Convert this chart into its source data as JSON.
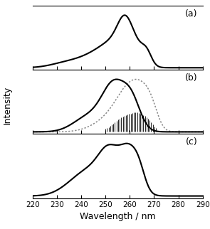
{
  "xmin": 220,
  "xmax": 290,
  "xlabel": "Wavelength / nm",
  "ylabel": "Intensity",
  "panel_labels": [
    "(a)",
    "(b)",
    "(c)"
  ],
  "background_color": "#ffffff",
  "tick_fontsize": 7.5,
  "label_fontsize": 9
}
